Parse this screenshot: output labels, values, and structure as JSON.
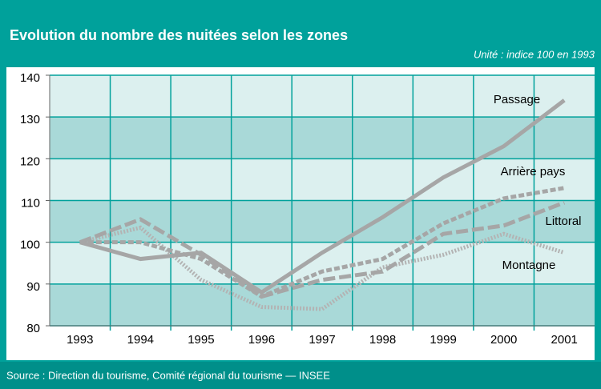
{
  "chart_data": {
    "type": "line",
    "title": "Evolution du nombre des nuitées selon les zones",
    "subtitle": "Unité : indice 100 en 1993",
    "source": "Source : Direction du tourisme, Comité régional du tourisme — INSEE",
    "categories": [
      "1993",
      "1994",
      "1995",
      "1996",
      "1997",
      "1998",
      "1999",
      "2000",
      "2001"
    ],
    "series": [
      {
        "name": "Passage",
        "color": "#a6a6a6",
        "dash": "none",
        "values": [
          100,
          96,
          97.5,
          88,
          97.5,
          106,
          115.5,
          123,
          134
        ]
      },
      {
        "name": "Arrière pays",
        "color": "#a6a6a6",
        "dash": "7,3",
        "values": [
          100,
          100,
          96,
          87,
          93,
          96,
          104.5,
          110.5,
          113
        ]
      },
      {
        "name": "Littoral",
        "color": "#a6a6a6",
        "dash": "15,5",
        "values": [
          100,
          105.5,
          97,
          87,
          91,
          93,
          102,
          104,
          109.5
        ]
      },
      {
        "name": "Montagne",
        "color": "#b3b3b3",
        "dash": "2,2",
        "values": [
          100,
          103.5,
          91,
          84.5,
          84,
          94,
          97,
          102,
          97.5
        ]
      }
    ],
    "ylim": [
      80,
      140
    ],
    "yticks": [
      80,
      90,
      100,
      110,
      120,
      130,
      140
    ],
    "grid": true
  }
}
